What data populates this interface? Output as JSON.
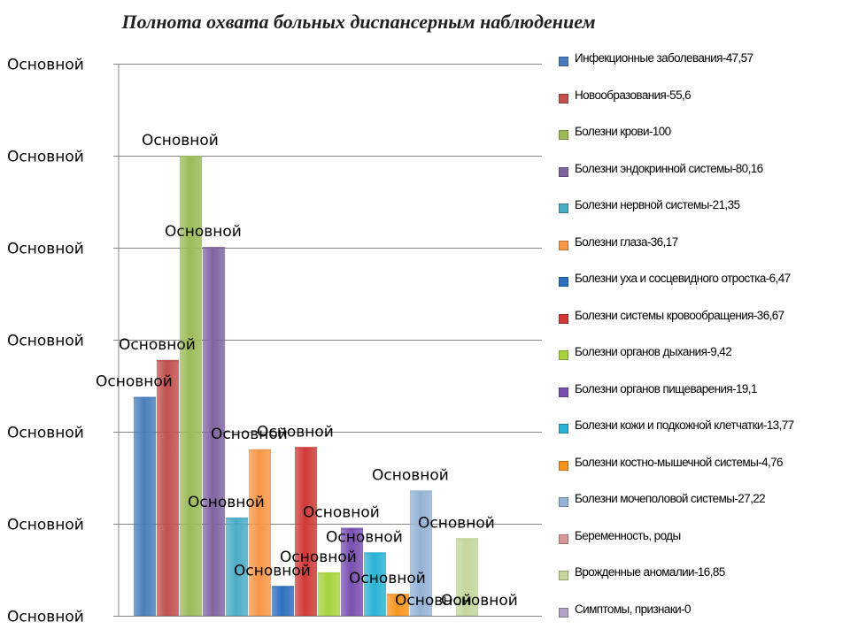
{
  "chart_data": {
    "type": "bar",
    "title": "Полнота охвата больных диспансерным наблюдением",
    "ylim": [
      0,
      120
    ],
    "y_tick_values": [
      0,
      20,
      40,
      60,
      80,
      100,
      120
    ],
    "y_tick_labels": [
      "Основной",
      "Основной",
      "Основной",
      "Основной",
      "Основной",
      "Основной",
      "Основной"
    ],
    "grid": true,
    "legend_position": "right",
    "series": [
      {
        "name": "Инфекционные заболевания-47,57",
        "value": 47.57,
        "color": "#4a7ebb",
        "data_label": "Основной"
      },
      {
        "name": "Новообразования-55,6",
        "value": 55.6,
        "color": "#c0504d",
        "data_label": "Основной"
      },
      {
        "name": "Болезни крови-100",
        "value": 100,
        "color": "#9bbb59",
        "data_label": "Основной"
      },
      {
        "name": "Болезни эндокринной системы-80,16",
        "value": 80.16,
        "color": "#8064a2",
        "data_label": "Основной"
      },
      {
        "name": "Болезни нервной системы-21,35",
        "value": 21.35,
        "color": "#4bacc6",
        "data_label": "Основной"
      },
      {
        "name": "Болезни глаза-36,17",
        "value": 36.17,
        "color": "#f79646",
        "data_label": "Основной"
      },
      {
        "name": "Болезни уха и сосцевидного отростка-6,47",
        "value": 6.47,
        "color": "#2c6fbf",
        "data_label": "Основной"
      },
      {
        "name": "Болезни системы кровообращения-36,67",
        "value": 36.67,
        "color": "#d03a36",
        "data_label": "Основной"
      },
      {
        "name": "Болезни органов дыхания-9,42",
        "value": 9.42,
        "color": "#a6d33d",
        "data_label": "Основной"
      },
      {
        "name": "Болезни органов пищеварения-19,1",
        "value": 19.1,
        "color": "#7a4fb0",
        "data_label": "Основной"
      },
      {
        "name": "Болезни кожи и подкожной клетчатки-13,77",
        "value": 13.77,
        "color": "#29b3d3",
        "data_label": "Основной"
      },
      {
        "name": "Болезни костно-мышечной системы-4,76",
        "value": 4.76,
        "color": "#f7941d",
        "data_label": "Основной"
      },
      {
        "name": "Болезни мочеполовой системы-27,22",
        "value": 27.22,
        "color": "#95b3d7",
        "data_label": "Основной"
      },
      {
        "name": "Беременность, роды",
        "value": 0,
        "color": "#d99694",
        "data_label": "Основной"
      },
      {
        "name": "Врожденные аномалии-16,85",
        "value": 16.85,
        "color": "#c3d69b",
        "data_label": "Основной"
      },
      {
        "name": "Симптомы, признаки-0",
        "value": 0,
        "color": "#b3a2c7",
        "data_label": "Основной"
      }
    ]
  }
}
